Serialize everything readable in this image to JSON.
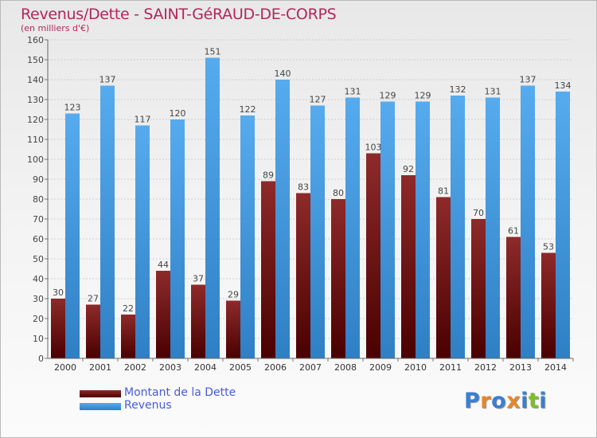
{
  "header": {
    "title": "Revenus/Dette - SAINT-GéRAUD-DE-CORPS",
    "subtitle": "(en milliers d'€)"
  },
  "legend": {
    "items": [
      {
        "label": "Montant de la Dette",
        "color": "#7a1515"
      },
      {
        "label": "Revenus",
        "color": "#4a9fe3"
      }
    ]
  },
  "logo": {
    "text": "Proxiti",
    "colors": [
      "#3a7fd0",
      "#e8852a",
      "#3a7fd0",
      "#e8852a",
      "#3a7fd0",
      "#7bbf2a",
      "#3a7fd0"
    ]
  },
  "chart_data": {
    "type": "bar",
    "categories": [
      "2000",
      "2001",
      "2002",
      "2003",
      "2004",
      "2005",
      "2006",
      "2007",
      "2008",
      "2009",
      "2010",
      "2011",
      "2012",
      "2013",
      "2014"
    ],
    "series": [
      {
        "name": "Montant de la Dette",
        "color": "#7a1515",
        "values": [
          30,
          27,
          22,
          44,
          37,
          29,
          89,
          83,
          80,
          103,
          92,
          81,
          70,
          61,
          53
        ]
      },
      {
        "name": "Revenus",
        "color": "#4a9fe3",
        "values": [
          123,
          137,
          117,
          120,
          151,
          122,
          140,
          127,
          131,
          129,
          129,
          132,
          131,
          137,
          134
        ]
      }
    ],
    "ylim": [
      0,
      160
    ],
    "yticks": [
      0,
      10,
      20,
      30,
      40,
      50,
      60,
      70,
      80,
      90,
      100,
      110,
      120,
      130,
      140,
      150,
      160
    ],
    "grid": "horizontal",
    "legend_position": "bottom-left"
  }
}
